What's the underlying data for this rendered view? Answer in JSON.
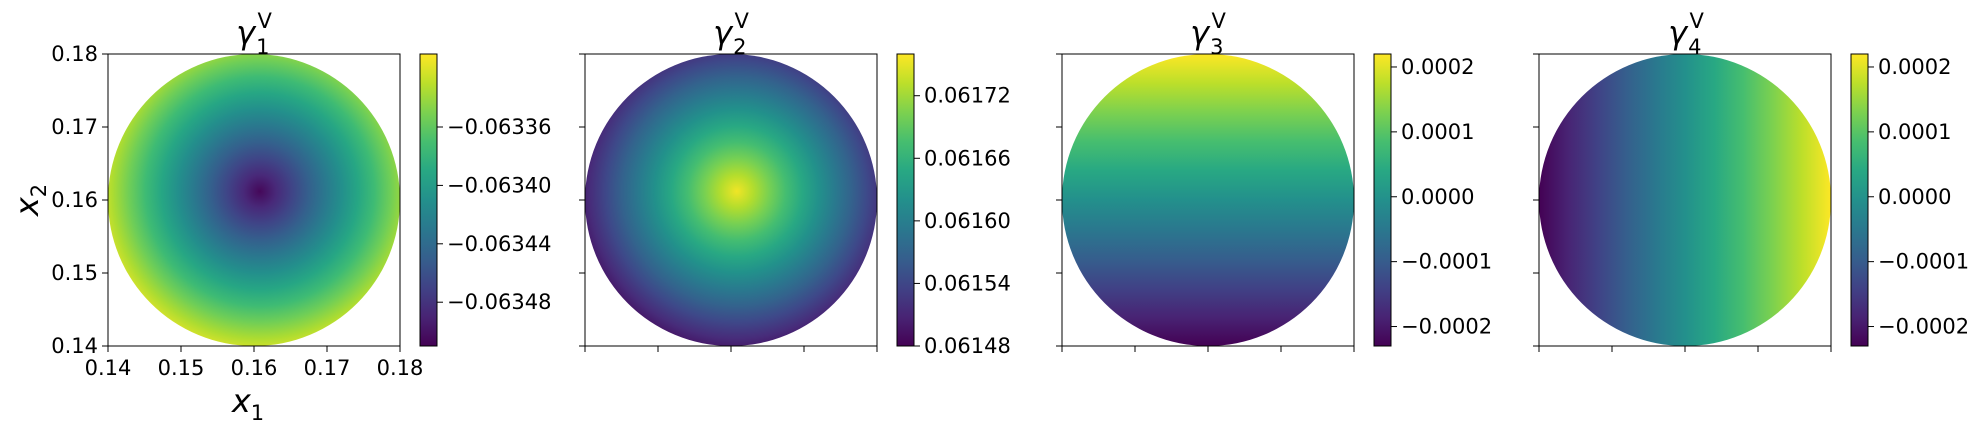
{
  "colormap": "viridis",
  "colormap_stops": [
    "#440154",
    "#482878",
    "#3e4989",
    "#31688e",
    "#26828e",
    "#1f9e89",
    "#35b779",
    "#6ece58",
    "#b5de2b",
    "#fde725"
  ],
  "chart_data": [
    {
      "type": "heatmap",
      "title": "γ₁ᵛ",
      "title_base": "γ",
      "title_sub": "1",
      "title_sup": "V",
      "xlabel_base": "x",
      "xlabel_sub": "1",
      "ylabel_base": "x",
      "ylabel_sub": "2",
      "xlim": [
        0.14,
        0.18
      ],
      "ylim": [
        0.14,
        0.18
      ],
      "xticks": [
        "0.14",
        "0.15",
        "0.16",
        "0.17",
        "0.18"
      ],
      "yticks": [
        "0.14",
        "0.15",
        "0.16",
        "0.17",
        "0.18"
      ],
      "domain": "disk",
      "pattern": "radial-min-center",
      "center_level": 0.02,
      "edge_level": 0.97,
      "clim": [
        -0.06351,
        -0.06331
      ],
      "colorbar_ticks": [
        "−0.06336",
        "−0.06340",
        "−0.06344",
        "−0.06348"
      ],
      "colorbar_tick_values": [
        -0.06336,
        -0.0634,
        -0.06344,
        -0.06348
      ]
    },
    {
      "type": "heatmap",
      "title": "γ₂ᵛ",
      "title_base": "γ",
      "title_sub": "2",
      "title_sup": "V",
      "domain": "disk",
      "pattern": "radial-max-center",
      "center_level": 0.98,
      "edge_level": 0.03,
      "clim": [
        0.06148,
        0.06176
      ],
      "colorbar_ticks": [
        "0.06172",
        "0.06166",
        "0.06160",
        "0.06154",
        "0.06148"
      ],
      "colorbar_tick_values": [
        0.06172,
        0.06166,
        0.0616,
        0.06154,
        0.06148
      ]
    },
    {
      "type": "heatmap",
      "title": "γ₃ᵛ",
      "title_base": "γ",
      "title_sub": "3",
      "title_sup": "V",
      "domain": "disk",
      "pattern": "vertical-gradient",
      "top_level": 1.0,
      "bottom_level": 0.0,
      "clim": [
        -0.00023,
        0.00022
      ],
      "colorbar_ticks": [
        "0.0002",
        "0.0001",
        "0.0000",
        "−0.0001",
        "−0.0002"
      ],
      "colorbar_tick_values": [
        0.0002,
        0.0001,
        0.0,
        -0.0001,
        -0.0002
      ]
    },
    {
      "type": "heatmap",
      "title": "γ₄ᵛ",
      "title_base": "γ",
      "title_sub": "4",
      "title_sup": "V",
      "domain": "disk",
      "pattern": "horizontal-gradient",
      "left_level": 0.0,
      "right_level": 1.0,
      "clim": [
        -0.00023,
        0.00022
      ],
      "colorbar_ticks": [
        "0.0002",
        "0.0001",
        "0.0000",
        "−0.0001",
        "−0.0002"
      ],
      "colorbar_tick_values": [
        0.0002,
        0.0001,
        0.0,
        -0.0001,
        -0.0002
      ]
    }
  ]
}
